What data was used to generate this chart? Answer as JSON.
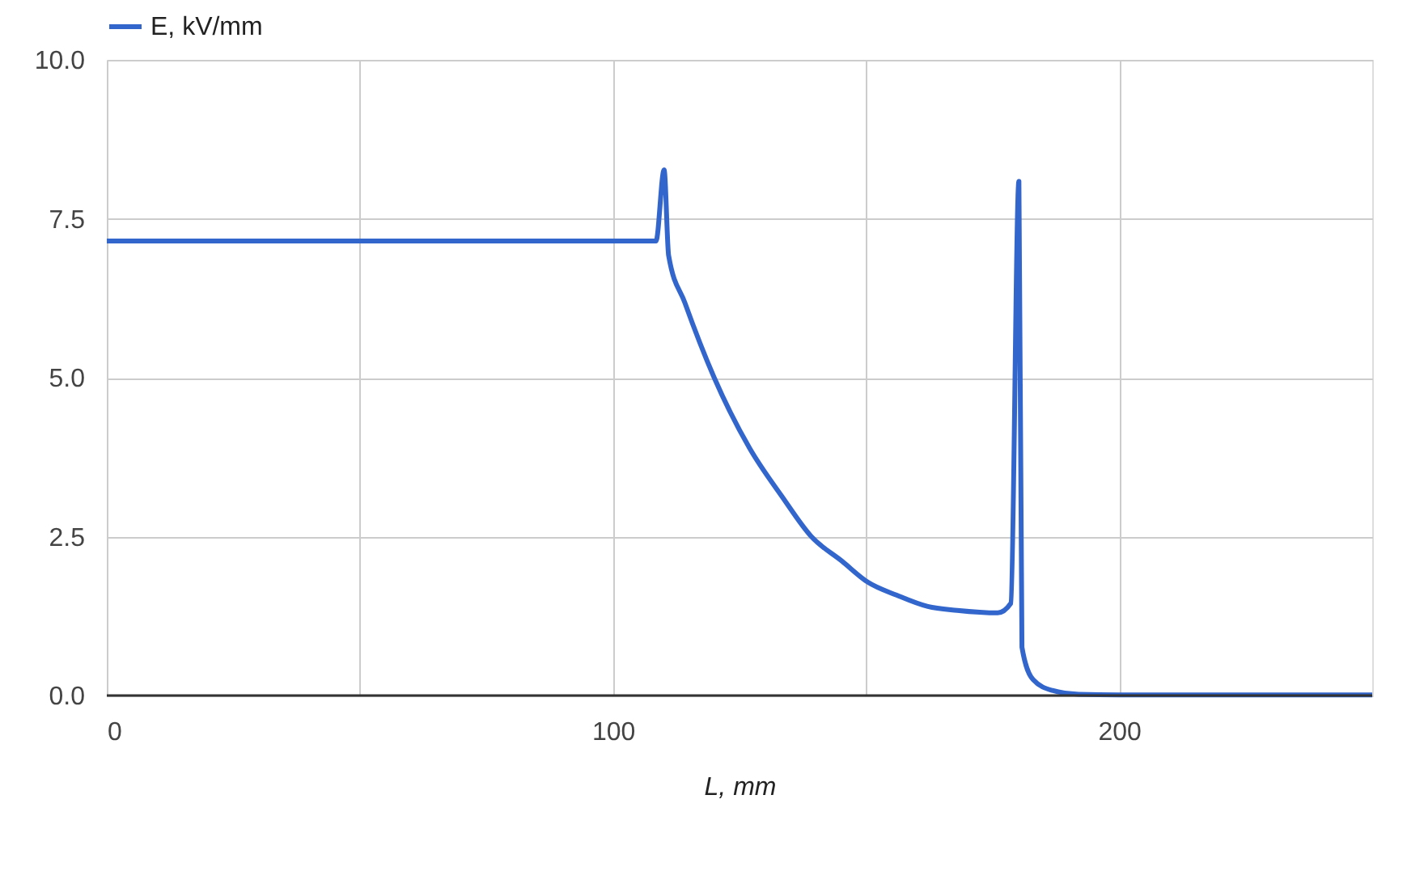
{
  "chart_data": {
    "type": "line",
    "xlabel": "L, mm",
    "x": [
      0,
      50,
      100,
      108.5,
      110.1,
      111,
      114.2,
      120,
      127,
      133.4,
      139.2,
      145.3,
      150.4,
      156,
      162.2,
      168,
      176,
      178.6,
      180.2,
      180.8,
      183,
      186.8,
      192,
      200,
      250
    ],
    "series": [
      {
        "name": "E, kV/mm",
        "color": "#3366cc",
        "values": [
          7.15,
          7.15,
          7.15,
          7.15,
          8.27,
          6.92,
          6.18,
          5.0,
          3.89,
          3.13,
          2.5,
          2.11,
          1.78,
          1.58,
          1.4,
          1.34,
          1.3,
          1.45,
          8.09,
          0.76,
          0.25,
          0.08,
          0.02,
          0.01,
          0.01
        ]
      }
    ],
    "xlim": [
      0,
      250
    ],
    "xticks": [
      0,
      {
        "value": 50,
        "label": null
      },
      100,
      {
        "value": 150,
        "label": null
      },
      200
    ],
    "ylim": [
      0,
      10
    ],
    "yticks": [
      {
        "value": 0,
        "label": "0.0"
      },
      {
        "value": 2.5,
        "label": "2.5"
      },
      {
        "value": 5,
        "label": "5.0"
      },
      {
        "value": 7.5,
        "label": "7.5"
      },
      {
        "value": 10,
        "label": "10.0"
      }
    ],
    "grid": true,
    "legend": "top left",
    "marker": "none",
    "line_style": "solid"
  }
}
